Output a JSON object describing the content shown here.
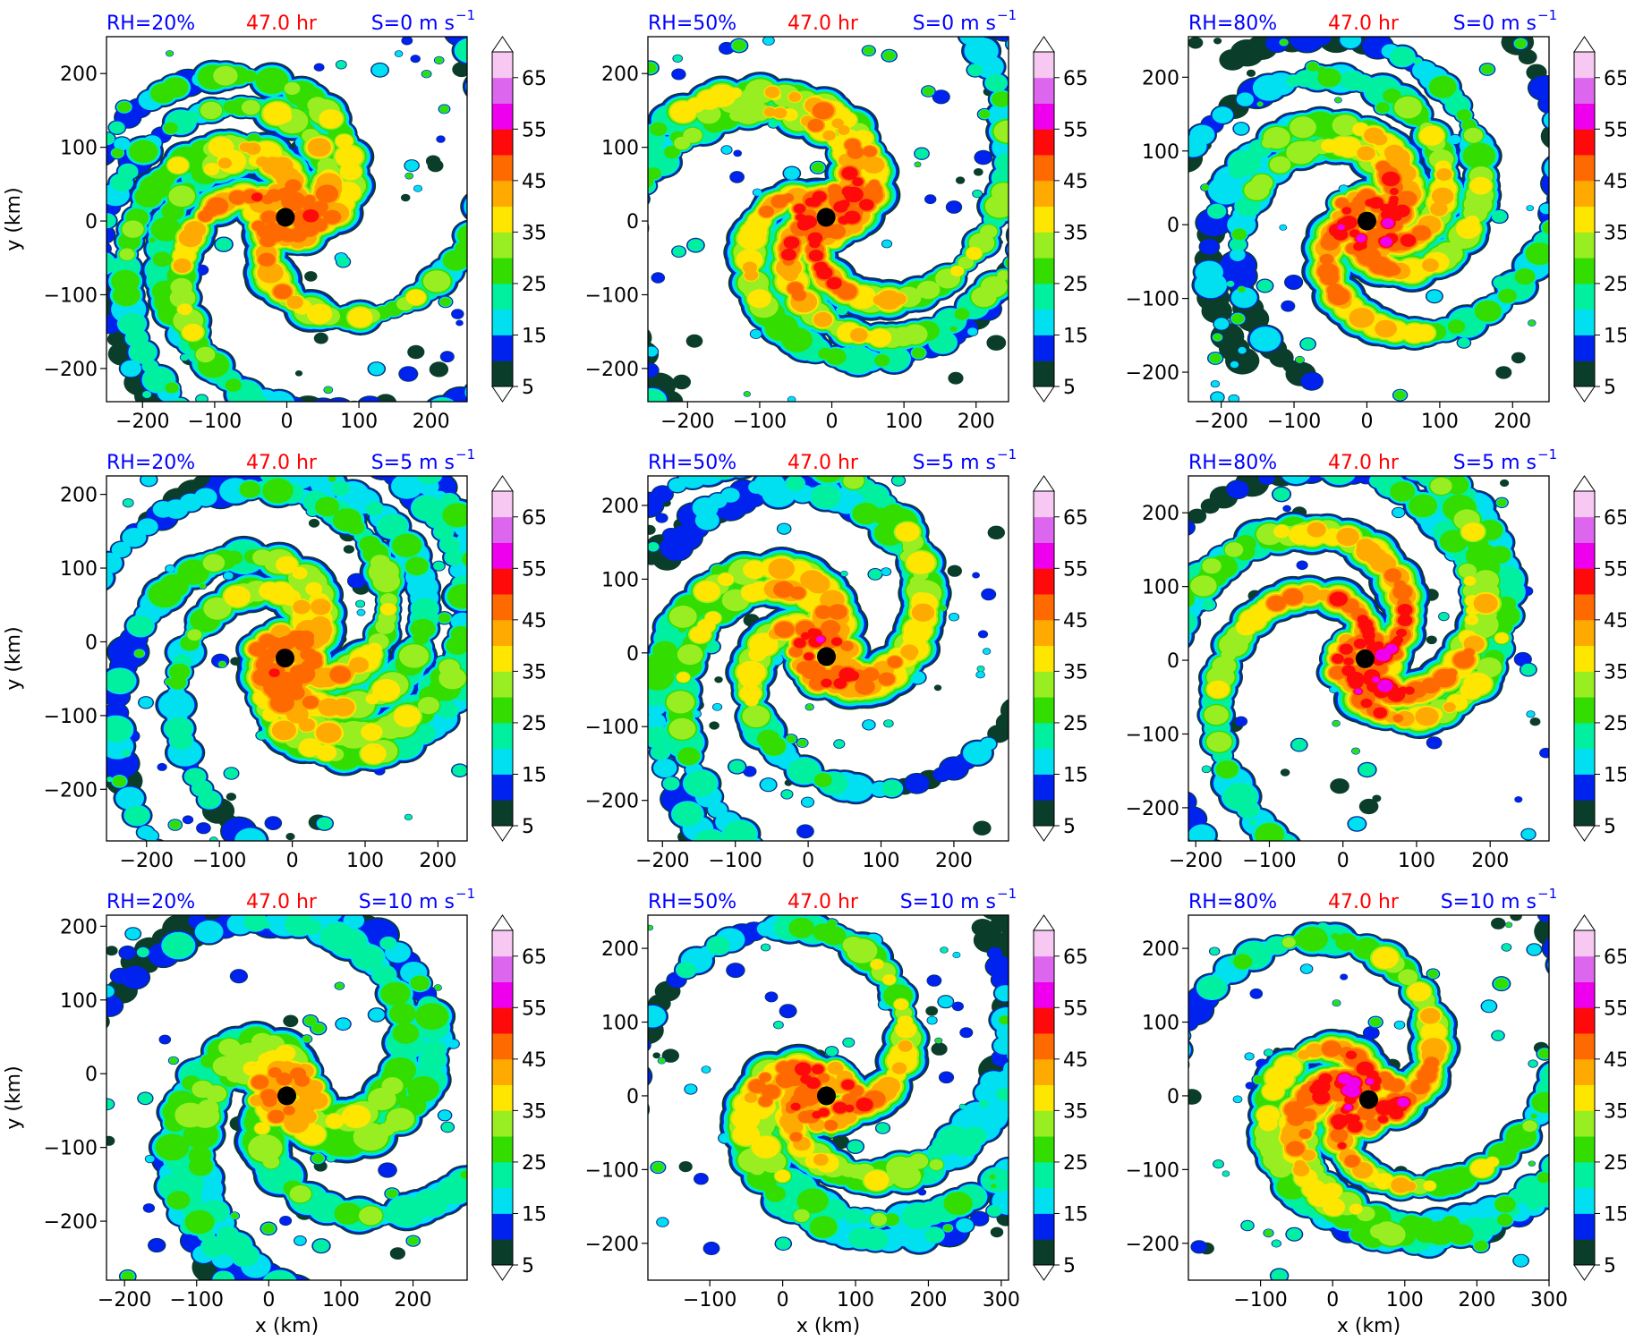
{
  "colors": {
    "blue_label": "#0000ff",
    "red_label": "#ff0000",
    "eye": "#000000",
    "levels": [
      "#0a3d2a",
      "#0022ee",
      "#00e0f0",
      "#00f0a0",
      "#33dd00",
      "#99ee22",
      "#ffe600",
      "#ffaa00",
      "#ff6a00",
      "#ff0a0a",
      "#ee00ee",
      "#dd66ee",
      "#f6c8f2"
    ]
  },
  "chart_data": [
    {
      "type": "heatmap",
      "rh": "RH=20%",
      "time": "47.0 hr",
      "shear": "S=0 m s",
      "shear_exp": "−1",
      "ylabel": "y (km)",
      "xlabel": "",
      "xlim": [
        -250,
        250
      ],
      "ylim": [
        -245,
        250
      ],
      "xticks": [
        "−200",
        "−100",
        "0",
        "100",
        "200"
      ],
      "yticks": [
        "200",
        "100",
        "0",
        "−100",
        "−200"
      ],
      "xtick_values": [
        -200,
        -100,
        0,
        100,
        200
      ],
      "ytick_values": [
        200,
        100,
        0,
        -100,
        -200
      ],
      "center": [
        -2,
        5
      ],
      "spread": 1.15,
      "intensity": 0.85,
      "arms": 1.0,
      "shift": [
        0,
        0
      ],
      "colorbar": {
        "ticks": [
          "65",
          "55",
          "45",
          "35",
          "25",
          "15",
          "5"
        ]
      }
    },
    {
      "type": "heatmap",
      "rh": "RH=50%",
      "time": "47.0 hr",
      "shear": "S=0 m s",
      "shear_exp": "−1",
      "ylabel": "",
      "xlabel": "",
      "xlim": [
        -255,
        245
      ],
      "ylim": [
        -245,
        250
      ],
      "xticks": [
        "−200",
        "−100",
        "0",
        "100",
        "200"
      ],
      "yticks": [
        "200",
        "100",
        "0",
        "−100",
        "−200"
      ],
      "xtick_values": [
        -200,
        -100,
        0,
        100,
        200
      ],
      "ytick_values": [
        200,
        100,
        0,
        -100,
        -200
      ],
      "center": [
        -8,
        5
      ],
      "spread": 1.2,
      "intensity": 0.95,
      "arms": 1.1,
      "shift": [
        0,
        0
      ],
      "colorbar": {
        "ticks": [
          "65",
          "55",
          "45",
          "35",
          "25",
          "15",
          "5"
        ]
      }
    },
    {
      "type": "heatmap",
      "rh": "RH=80%",
      "time": "47.0 hr",
      "shear": "S=0 m s",
      "shear_exp": "−1",
      "ylabel": "",
      "xlabel": "",
      "xlim": [
        -245,
        250
      ],
      "ylim": [
        -240,
        255
      ],
      "xticks": [
        "−200",
        "−100",
        "0",
        "100",
        "200"
      ],
      "yticks": [
        "200",
        "100",
        "0",
        "−100",
        "−200"
      ],
      "xtick_values": [
        -200,
        -100,
        0,
        100,
        200
      ],
      "ytick_values": [
        200,
        100,
        0,
        -100,
        -200
      ],
      "center": [
        0,
        5
      ],
      "spread": 0.85,
      "intensity": 1.0,
      "arms": 0.7,
      "shift": [
        0,
        0
      ],
      "colorbar": {
        "ticks": [
          "65",
          "55",
          "45",
          "35",
          "25",
          "15",
          "5"
        ]
      }
    },
    {
      "type": "heatmap",
      "rh": "RH=20%",
      "time": "47.0 hr",
      "shear": "S=5 m s",
      "shear_exp": "−1",
      "ylabel": "y (km)",
      "xlabel": "",
      "xlim": [
        -255,
        240
      ],
      "ylim": [
        -270,
        225
      ],
      "xticks": [
        "−200",
        "−100",
        "0",
        "100",
        "200"
      ],
      "yticks": [
        "200",
        "100",
        "0",
        "−100",
        "−200"
      ],
      "xtick_values": [
        -200,
        -100,
        0,
        100,
        200
      ],
      "ytick_values": [
        200,
        100,
        0,
        -100,
        -200
      ],
      "center": [
        -10,
        -22
      ],
      "spread": 1.1,
      "intensity": 0.8,
      "arms": 1.2,
      "shift": [
        60,
        -40
      ],
      "colorbar": {
        "ticks": [
          "65",
          "55",
          "45",
          "35",
          "25",
          "15",
          "5"
        ]
      }
    },
    {
      "type": "heatmap",
      "rh": "RH=50%",
      "time": "47.0 hr",
      "shear": "S=5 m s",
      "shear_exp": "−1",
      "ylabel": "",
      "xlabel": "",
      "xlim": [
        -220,
        275
      ],
      "ylim": [
        -255,
        240
      ],
      "xticks": [
        "−200",
        "−100",
        "0",
        "100",
        "200"
      ],
      "yticks": [
        "200",
        "100",
        "0",
        "−100",
        "−200"
      ],
      "xtick_values": [
        -200,
        -100,
        0,
        100,
        200
      ],
      "ytick_values": [
        200,
        100,
        0,
        -100,
        -200
      ],
      "center": [
        25,
        -5
      ],
      "spread": 1.05,
      "intensity": 0.9,
      "arms": 1.1,
      "shift": [
        20,
        40
      ],
      "colorbar": {
        "ticks": [
          "65",
          "55",
          "45",
          "35",
          "25",
          "15",
          "5"
        ]
      }
    },
    {
      "type": "heatmap",
      "rh": "RH=80%",
      "time": "47.0 hr",
      "shear": "S=5 m s",
      "shear_exp": "−1",
      "ylabel": "",
      "xlabel": "",
      "xlim": [
        -210,
        280
      ],
      "ylim": [
        -245,
        250
      ],
      "xticks": [
        "−200",
        "−100",
        "0",
        "100",
        "200"
      ],
      "yticks": [
        "200",
        "100",
        "0",
        "−100",
        "−200"
      ],
      "xtick_values": [
        -200,
        -100,
        0,
        100,
        200
      ],
      "ytick_values": [
        200,
        100,
        0,
        -100,
        -200
      ],
      "center": [
        30,
        2
      ],
      "spread": 1.05,
      "intensity": 1.0,
      "arms": 1.0,
      "shift": [
        10,
        30
      ],
      "colorbar": {
        "ticks": [
          "65",
          "55",
          "45",
          "35",
          "25",
          "15",
          "5"
        ]
      }
    },
    {
      "type": "heatmap",
      "rh": "RH=20%",
      "time": "47.0 hr",
      "shear": "S=10 m s",
      "shear_exp": "−1",
      "ylabel": "y (km)",
      "xlabel": "x (km)",
      "xlim": [
        -225,
        275
      ],
      "ylim": [
        -280,
        215
      ],
      "xticks": [
        "−200",
        "−100",
        "0",
        "100",
        "200"
      ],
      "yticks": [
        "200",
        "100",
        "0",
        "−100",
        "−200"
      ],
      "xtick_values": [
        -200,
        -100,
        0,
        100,
        200
      ],
      "ytick_values": [
        200,
        100,
        0,
        -100,
        -200
      ],
      "center": [
        25,
        -30
      ],
      "spread": 1.1,
      "intensity": 0.6,
      "arms": 0.9,
      "shift": [
        80,
        -60
      ],
      "colorbar": {
        "ticks": [
          "65",
          "55",
          "45",
          "35",
          "25",
          "15",
          "5"
        ]
      }
    },
    {
      "type": "heatmap",
      "rh": "RH=50%",
      "time": "47.0 hr",
      "shear": "S=10 m s",
      "shear_exp": "−1",
      "ylabel": "",
      "xlabel": "x (km)",
      "xlim": [
        -185,
        310
      ],
      "ylim": [
        -250,
        245
      ],
      "xticks": [
        "−100",
        "0",
        "100",
        "200",
        "300"
      ],
      "yticks": [
        "200",
        "100",
        "0",
        "−100",
        "−200"
      ],
      "xtick_values": [
        -100,
        0,
        100,
        200,
        300
      ],
      "ytick_values": [
        200,
        100,
        0,
        -100,
        -200
      ],
      "center": [
        60,
        0
      ],
      "spread": 0.95,
      "intensity": 0.9,
      "arms": 0.8,
      "shift": [
        40,
        90
      ],
      "colorbar": {
        "ticks": [
          "65",
          "55",
          "45",
          "35",
          "25",
          "15",
          "5"
        ]
      }
    },
    {
      "type": "heatmap",
      "rh": "RH=80%",
      "time": "47.0 hr",
      "shear": "S=10 m s",
      "shear_exp": "−1",
      "ylabel": "",
      "xlabel": "x (km)",
      "xlim": [
        -200,
        300
      ],
      "ylim": [
        -250,
        245
      ],
      "xticks": [
        "−100",
        "0",
        "100",
        "200",
        "300"
      ],
      "yticks": [
        "200",
        "100",
        "0",
        "−100",
        "−200"
      ],
      "xtick_values": [
        -100,
        0,
        100,
        200,
        300
      ],
      "ytick_values": [
        200,
        100,
        0,
        -100,
        -200
      ],
      "center": [
        50,
        -5
      ],
      "spread": 1.1,
      "intensity": 1.0,
      "arms": 0.9,
      "shift": [
        20,
        100
      ],
      "colorbar": {
        "ticks": [
          "65",
          "55",
          "45",
          "35",
          "25",
          "15",
          "5"
        ]
      }
    }
  ]
}
